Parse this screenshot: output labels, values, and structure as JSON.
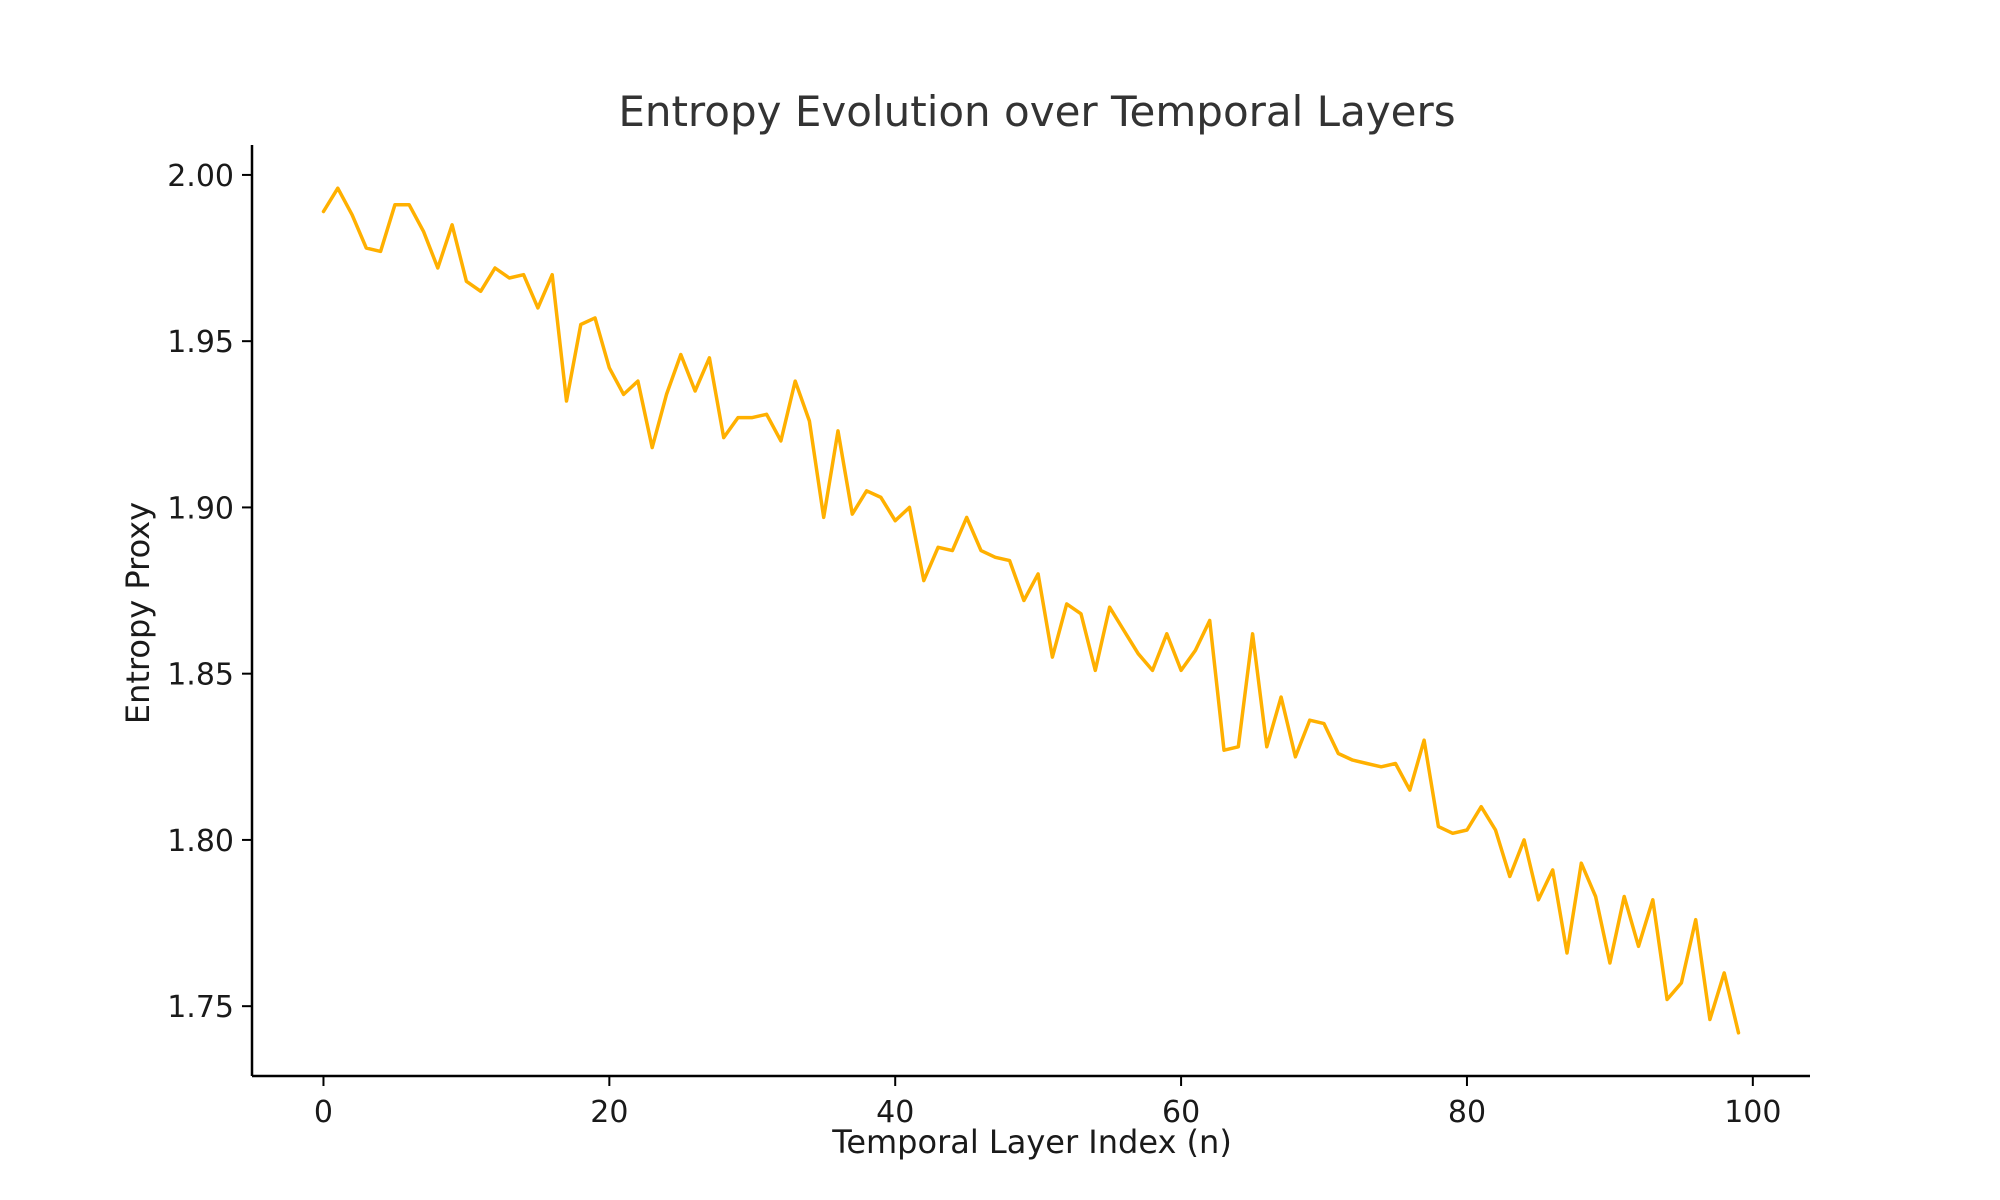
{
  "chart_data": {
    "type": "line",
    "title": "Entropy Evolution over Temporal Layers",
    "xlabel": "Temporal Layer Index (n)",
    "ylabel": "Entropy Proxy",
    "xlim": [
      -5,
      104
    ],
    "ylim": [
      1.729,
      2.009
    ],
    "xticks": [
      0,
      20,
      40,
      60,
      80,
      100
    ],
    "xtick_labels": [
      "0",
      "20",
      "40",
      "60",
      "80",
      "100"
    ],
    "yticks": [
      1.75,
      1.8,
      1.85,
      1.9,
      1.95,
      2.0
    ],
    "ytick_labels": [
      "1.75",
      "1.80",
      "1.85",
      "1.90",
      "1.95",
      "2.00"
    ],
    "grid": false,
    "series": [
      {
        "color": "#FFB000",
        "x": [
          0,
          1,
          2,
          3,
          4,
          5,
          6,
          7,
          8,
          9,
          10,
          11,
          12,
          13,
          14,
          15,
          16,
          17,
          18,
          19,
          20,
          21,
          22,
          23,
          24,
          25,
          26,
          27,
          28,
          29,
          30,
          31,
          32,
          33,
          34,
          35,
          36,
          37,
          38,
          39,
          40,
          41,
          42,
          43,
          44,
          45,
          46,
          47,
          48,
          49,
          50,
          51,
          52,
          53,
          54,
          55,
          56,
          57,
          58,
          59,
          60,
          61,
          62,
          63,
          64,
          65,
          66,
          67,
          68,
          69,
          70,
          71,
          72,
          73,
          74,
          75,
          76,
          77,
          78,
          79,
          80,
          81,
          82,
          83,
          84,
          85,
          86,
          87,
          88,
          89,
          90,
          91,
          92,
          93,
          94,
          95,
          96,
          97,
          98,
          99
        ],
        "y": [
          1.989,
          1.996,
          1.988,
          1.978,
          1.977,
          1.991,
          1.991,
          1.983,
          1.972,
          1.985,
          1.968,
          1.965,
          1.972,
          1.969,
          1.97,
          1.96,
          1.97,
          1.932,
          1.955,
          1.957,
          1.942,
          1.934,
          1.938,
          1.918,
          1.934,
          1.946,
          1.935,
          1.945,
          1.921,
          1.927,
          1.927,
          1.928,
          1.92,
          1.938,
          1.926,
          1.897,
          1.923,
          1.898,
          1.905,
          1.903,
          1.896,
          1.9,
          1.878,
          1.888,
          1.887,
          1.897,
          1.887,
          1.885,
          1.884,
          1.872,
          1.88,
          1.855,
          1.871,
          1.868,
          1.851,
          1.87,
          1.863,
          1.856,
          1.851,
          1.862,
          1.851,
          1.857,
          1.866,
          1.827,
          1.828,
          1.862,
          1.828,
          1.843,
          1.825,
          1.836,
          1.835,
          1.826,
          1.824,
          1.823,
          1.822,
          1.823,
          1.815,
          1.83,
          1.804,
          1.802,
          1.803,
          1.81,
          1.803,
          1.789,
          1.8,
          1.782,
          1.791,
          1.766,
          1.793,
          1.783,
          1.763,
          1.783,
          1.768,
          1.782,
          1.752,
          1.757,
          1.776,
          1.746,
          1.76,
          1.742
        ]
      }
    ]
  }
}
